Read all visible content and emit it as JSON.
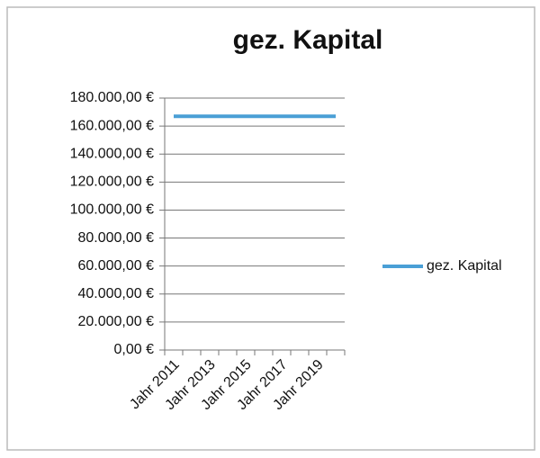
{
  "chart_data": {
    "type": "line",
    "title": "gez. Kapital",
    "categories": [
      "Jahr 2011",
      null,
      "Jahr 2013",
      null,
      "Jahr 2015",
      null,
      "Jahr 2017",
      null,
      "Jahr 2019",
      null
    ],
    "series": [
      {
        "name": "gez. Kapital",
        "color": "#4a9fd6",
        "values": [
          167000,
          167000,
          167000,
          167000,
          167000,
          167000,
          167000,
          167000,
          167000,
          167000
        ]
      }
    ],
    "ylim": [
      0,
      180000
    ],
    "yticks": [
      {
        "value": 0,
        "label": "0,00 €"
      },
      {
        "value": 20000,
        "label": "20.000,00 €"
      },
      {
        "value": 40000,
        "label": "40.000,00 €"
      },
      {
        "value": 60000,
        "label": "60.000,00 €"
      },
      {
        "value": 80000,
        "label": "80.000,00 €"
      },
      {
        "value": 100000,
        "label": "100.000,00 €"
      },
      {
        "value": 120000,
        "label": "120.000,00 €"
      },
      {
        "value": 140000,
        "label": "140.000,00 €"
      },
      {
        "value": 160000,
        "label": "160.000,00 €"
      },
      {
        "value": 180000,
        "label": "180.000,00 €"
      }
    ],
    "grid": true,
    "legend": "right"
  }
}
